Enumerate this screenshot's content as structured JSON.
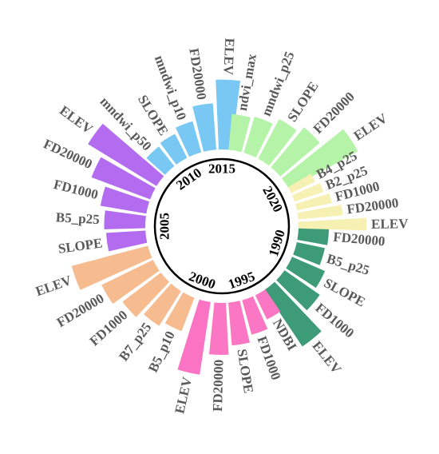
{
  "chart_data": {
    "type": "bar",
    "polar": true,
    "groups": [
      {
        "year": "1990",
        "color": "#3d9b78",
        "features": [
          "FD20000",
          "B5_p25",
          "SLOPE",
          "FD1000",
          "ELEV"
        ],
        "values": [
          0.34,
          0.32,
          0.4,
          0.48,
          0.76
        ]
      },
      {
        "year": "1995",
        "color": "#fb77c4",
        "features": [
          "NDBI",
          "FD1000",
          "SLOPE",
          "FD20000"
        ],
        "values": [
          0.3,
          0.4,
          0.48,
          0.58
        ]
      },
      {
        "year": "2000",
        "color": "#fb74c4",
        "features": [
          "ELEV"
        ],
        "values": [
          0.82
        ]
      },
      {
        "year": "2000",
        "color": "#f6bb8f",
        "features": [
          "B5_p10",
          "B7_p25",
          "FD1000",
          "FD20000",
          "ELEV"
        ],
        "values": [
          0.4,
          0.46,
          0.54,
          0.64,
          0.88
        ]
      },
      {
        "year": "2005",
        "color": "#b36cf0",
        "features": [
          "SLOPE",
          "B5_p25",
          "FD1000",
          "FD20000",
          "ELEV"
        ],
        "values": [
          0.44,
          0.46,
          0.52,
          0.7,
          0.9
        ]
      },
      {
        "year": "2010",
        "color": "#79c8f3",
        "features": [
          "mndwi_p50",
          "SLOPE",
          "mndwi_p10",
          "FD20000",
          "ELEV"
        ],
        "values": [
          0.28,
          0.3,
          0.36,
          0.52,
          0.78
        ]
      },
      {
        "year": "2015",
        "color": "#b5f3a8",
        "features": [
          "ndvi_max",
          "mndwi_p25",
          "SLOPE",
          "FD20000",
          "ELEV"
        ],
        "values": [
          0.4,
          0.42,
          0.5,
          0.58,
          0.88
        ]
      },
      {
        "year": "2020",
        "color": "#f6f0b3",
        "features": [
          "B4_p25",
          "B2_p25",
          "FD1000",
          "FD20000",
          "ELEV"
        ],
        "values": [
          0.3,
          0.34,
          0.4,
          0.5,
          0.76
        ]
      }
    ],
    "year_labels": [
      "1990",
      "1995",
      "2000",
      "2005",
      "2010",
      "2015",
      "2020"
    ]
  }
}
